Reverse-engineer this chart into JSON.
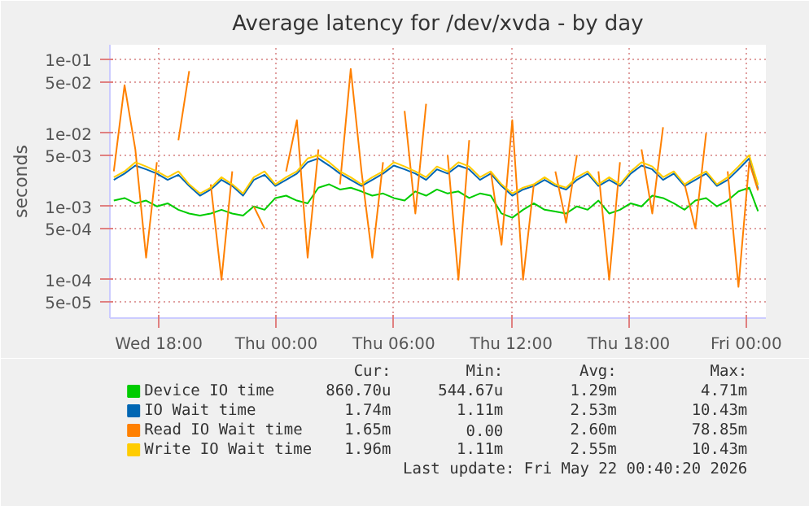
{
  "chart_data": {
    "type": "line",
    "title": "Average latency for /dev/xvda - by day",
    "ylabel": "seconds",
    "x": [
      "2026-05-20T15:42",
      "2026-05-20T16:15",
      "2026-05-20T16:48",
      "2026-05-20T17:21",
      "2026-05-20T17:54",
      "2026-05-20T18:27",
      "2026-05-20T19:00",
      "2026-05-20T19:33",
      "2026-05-20T20:06",
      "2026-05-20T20:39",
      "2026-05-20T21:12",
      "2026-05-20T21:45",
      "2026-05-20T22:18",
      "2026-05-20T22:51",
      "2026-05-20T23:24",
      "2026-05-20T23:57",
      "2026-05-21T00:30",
      "2026-05-21T01:03",
      "2026-05-21T01:36",
      "2026-05-21T02:09",
      "2026-05-21T02:42",
      "2026-05-21T03:15",
      "2026-05-21T03:48",
      "2026-05-21T04:21",
      "2026-05-21T04:54",
      "2026-05-21T05:27",
      "2026-05-21T06:00",
      "2026-05-21T06:33",
      "2026-05-21T07:06",
      "2026-05-21T07:39",
      "2026-05-21T08:12",
      "2026-05-21T08:45",
      "2026-05-21T09:18",
      "2026-05-21T09:51",
      "2026-05-21T10:24",
      "2026-05-21T10:57",
      "2026-05-21T11:30",
      "2026-05-21T12:03",
      "2026-05-21T12:36",
      "2026-05-21T13:09",
      "2026-05-21T13:42",
      "2026-05-21T14:15",
      "2026-05-21T14:48",
      "2026-05-21T15:21",
      "2026-05-21T15:54",
      "2026-05-21T16:27",
      "2026-05-21T17:00",
      "2026-05-21T17:33",
      "2026-05-21T18:06",
      "2026-05-21T18:39",
      "2026-05-21T19:12",
      "2026-05-21T19:45",
      "2026-05-21T20:18",
      "2026-05-21T20:51",
      "2026-05-21T21:24",
      "2026-05-21T21:57",
      "2026-05-21T22:30",
      "2026-05-21T23:03",
      "2026-05-21T23:36",
      "2026-05-22T00:09",
      "2026-05-22T00:36"
    ],
    "series": [
      {
        "name": "Device IO time",
        "color": "#00cc00",
        "values": [
          0.0012,
          0.0013,
          0.0011,
          0.0012,
          0.001,
          0.0011,
          0.0009,
          0.0008,
          0.00075,
          0.0008,
          0.0009,
          0.0008,
          0.00075,
          0.001,
          0.0009,
          0.0013,
          0.0014,
          0.0012,
          0.0011,
          0.0018,
          0.002,
          0.0017,
          0.0018,
          0.0016,
          0.0014,
          0.0015,
          0.0013,
          0.0012,
          0.0016,
          0.0014,
          0.0017,
          0.0015,
          0.0016,
          0.0013,
          0.0015,
          0.0014,
          0.0008,
          0.0007,
          0.0009,
          0.0011,
          0.0009,
          0.00085,
          0.0008,
          0.001,
          0.0009,
          0.0012,
          0.0008,
          0.0009,
          0.0011,
          0.001,
          0.0014,
          0.0013,
          0.0011,
          0.0009,
          0.0012,
          0.0013,
          0.001,
          0.0012,
          0.0016,
          0.0018,
          0.00086
        ]
      },
      {
        "name": "IO Wait time",
        "color": "#0066b3",
        "values": [
          0.0023,
          0.0028,
          0.0036,
          0.0032,
          0.0028,
          0.0023,
          0.0027,
          0.0019,
          0.0014,
          0.0017,
          0.0023,
          0.0019,
          0.0014,
          0.0023,
          0.0027,
          0.0019,
          0.0023,
          0.0028,
          0.004,
          0.0045,
          0.0036,
          0.0028,
          0.0023,
          0.0019,
          0.0023,
          0.0028,
          0.0036,
          0.0032,
          0.0028,
          0.0023,
          0.0032,
          0.0028,
          0.0036,
          0.0032,
          0.0023,
          0.0028,
          0.0019,
          0.0014,
          0.0017,
          0.0019,
          0.0023,
          0.0019,
          0.0017,
          0.0023,
          0.0028,
          0.0019,
          0.0023,
          0.0019,
          0.0028,
          0.0036,
          0.0032,
          0.0023,
          0.0028,
          0.0019,
          0.0023,
          0.0028,
          0.0019,
          0.0023,
          0.0032,
          0.0045,
          0.00174
        ]
      },
      {
        "name": "Read IO Wait time",
        "color": "#ff8000",
        "values": [
          0.003,
          0.045,
          0.006,
          0.0002,
          0.004,
          null,
          0.008,
          0.07,
          null,
          0.002,
          0.0001,
          0.003,
          null,
          0.001,
          0.0005,
          null,
          0.003,
          0.015,
          0.0002,
          0.006,
          null,
          0.002,
          0.075,
          0.003,
          0.0002,
          0.004,
          null,
          0.02,
          0.0008,
          0.025,
          null,
          0.005,
          0.0001,
          0.008,
          null,
          0.003,
          0.0003,
          0.015,
          0.0001,
          0.002,
          null,
          0.003,
          0.0006,
          0.005,
          null,
          0.003,
          0.0001,
          0.004,
          null,
          0.006,
          0.0008,
          0.012,
          null,
          0.002,
          0.0005,
          0.01,
          null,
          0.003,
          8e-05,
          0.004,
          0.00165
        ]
      },
      {
        "name": "Write IO Wait time",
        "color": "#ffcc00",
        "values": [
          0.0025,
          0.003,
          0.004,
          0.0035,
          0.003,
          0.0025,
          0.003,
          0.002,
          0.0015,
          0.0018,
          0.0025,
          0.002,
          0.0015,
          0.0025,
          0.003,
          0.002,
          0.0025,
          0.003,
          0.0045,
          0.005,
          0.004,
          0.003,
          0.0025,
          0.002,
          0.0025,
          0.003,
          0.004,
          0.0035,
          0.003,
          0.0025,
          0.0035,
          0.003,
          0.004,
          0.0035,
          0.0025,
          0.003,
          0.002,
          0.0015,
          0.0018,
          0.002,
          0.0025,
          0.002,
          0.0018,
          0.0025,
          0.003,
          0.002,
          0.0025,
          0.002,
          0.003,
          0.004,
          0.0035,
          0.0025,
          0.003,
          0.002,
          0.0025,
          0.003,
          0.002,
          0.0025,
          0.0035,
          0.005,
          0.00196
        ]
      }
    ],
    "xlim": [
      "2026-05-20T15:30",
      "2026-05-22T01:00"
    ],
    "xticks": [
      {
        "value": "2026-05-20T18:00",
        "label": "Wed 18:00"
      },
      {
        "value": "2026-05-21T00:00",
        "label": "Thu 00:00"
      },
      {
        "value": "2026-05-21T06:00",
        "label": "Thu 06:00"
      },
      {
        "value": "2026-05-21T12:00",
        "label": "Thu 12:00"
      },
      {
        "value": "2026-05-21T18:00",
        "label": "Thu 18:00"
      },
      {
        "value": "2026-05-22T00:00",
        "label": "Fri 00:00"
      }
    ],
    "log": "y",
    "ylim": [
      3e-05,
      0.16
    ],
    "yticks": [
      {
        "value": 0.1,
        "label": "1e-01"
      },
      {
        "value": 0.05,
        "label": "5e-02"
      },
      {
        "value": 0.01,
        "label": "1e-02"
      },
      {
        "value": 0.005,
        "label": "5e-03"
      },
      {
        "value": 0.001,
        "label": "1e-03"
      },
      {
        "value": 0.0005,
        "label": "5e-04"
      },
      {
        "value": 0.0001,
        "label": "1e-04"
      },
      {
        "value": 5e-05,
        "label": "5e-05"
      }
    ],
    "grid": true,
    "legend": "bottom",
    "annotations": [
      "Cur:",
      "Min:",
      "Avg:",
      "Max:",
      "860.70u",
      "544.67u",
      "1.29m",
      "4.71m",
      "1.74m",
      "1.11m",
      "2.53m",
      "10.43m",
      "1.65m",
      "0.00",
      "2.60m",
      "78.85m",
      "1.96m",
      "1.11m",
      "2.55m",
      "10.43m",
      "Last update: Fri May 22 00:40:20 2026"
    ]
  }
}
